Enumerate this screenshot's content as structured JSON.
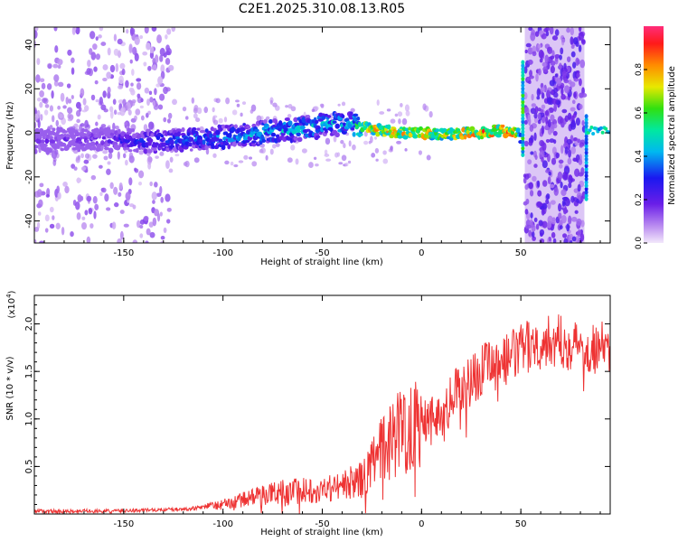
{
  "title": "C2E1.2025.310.08.13.R05",
  "top_panel": {
    "xlabel": "Height of straight line (km)",
    "ylabel": "Frequency (Hz)",
    "colorbar_label": "Normalized spectral amplitude",
    "colorbar_ticks": [
      "0.0",
      "0.2",
      "0.4",
      "0.6",
      "0.8"
    ]
  },
  "bottom_panel": {
    "xlabel": "Height of straight line (km)",
    "ylabel": "SNR (10 * v/v)",
    "scale_label": "(x10",
    "scale_exp": "4",
    "scale_close": ")"
  },
  "chart_data": [
    {
      "type": "heatmap",
      "title": "C2E1.2025.310.08.13.R05",
      "xlabel": "Height of straight line (km)",
      "ylabel": "Frequency (Hz)",
      "xlim": [
        -195,
        95
      ],
      "ylim": [
        -50,
        48
      ],
      "xticks": [
        -150,
        -100,
        -50,
        0,
        50
      ],
      "yticks": [
        -40,
        -20,
        0,
        20,
        40
      ],
      "colorbar": {
        "label": "Normalized spectral amplitude",
        "range": [
          0,
          1
        ],
        "ticks": [
          0.0,
          0.2,
          0.4,
          0.6,
          0.8
        ]
      },
      "ridge": {
        "x": [
          -195,
          -180,
          -160,
          -140,
          -120,
          -100,
          -80,
          -60,
          -45,
          -35,
          -30,
          -20,
          -10,
          0,
          10,
          20,
          30,
          40,
          48,
          50
        ],
        "freq": [
          -4,
          -3,
          -3,
          -4,
          -3,
          -2,
          0,
          2,
          4,
          4,
          3,
          1,
          0,
          0,
          -1,
          0,
          0,
          1,
          0,
          -2
        ],
        "amplitude": [
          0.2,
          0.2,
          0.25,
          0.35,
          0.4,
          0.45,
          0.5,
          0.5,
          0.5,
          0.55,
          0.8,
          0.85,
          0.85,
          0.9,
          0.7,
          0.85,
          0.9,
          0.9,
          0.85,
          0.4
        ]
      },
      "broadband_regions": [
        [
          -195,
          -125
        ],
        [
          52,
          82
        ]
      ]
    },
    {
      "type": "line",
      "xlabel": "Height of straight line (km)",
      "ylabel": "SNR (10 * v/v)",
      "scale": "x10^4",
      "xlim": [
        -195,
        95
      ],
      "ylim": [
        0,
        2.3
      ],
      "xticks": [
        -150,
        -100,
        -50,
        0,
        50
      ],
      "yticks": [
        0.5,
        1.0,
        1.5,
        2.0
      ],
      "series": [
        {
          "name": "SNR",
          "color": "#ee3333",
          "x": [
            -195,
            -180,
            -160,
            -140,
            -120,
            -110,
            -100,
            -90,
            -80,
            -70,
            -60,
            -50,
            -40,
            -30,
            -25,
            -20,
            -15,
            -10,
            -5,
            0,
            5,
            10,
            15,
            20,
            25,
            30,
            35,
            40,
            45,
            50,
            55,
            60,
            65,
            70,
            75,
            80,
            85,
            90,
            95
          ],
          "y": [
            0.03,
            0.03,
            0.03,
            0.04,
            0.05,
            0.07,
            0.1,
            0.15,
            0.2,
            0.24,
            0.25,
            0.26,
            0.3,
            0.36,
            0.5,
            0.68,
            0.8,
            0.88,
            0.96,
            1.03,
            1.0,
            1.07,
            1.2,
            1.33,
            1.42,
            1.5,
            1.56,
            1.6,
            1.65,
            1.72,
            1.78,
            1.8,
            1.82,
            1.82,
            1.78,
            1.77,
            1.76,
            1.75,
            1.75
          ]
        }
      ]
    }
  ]
}
